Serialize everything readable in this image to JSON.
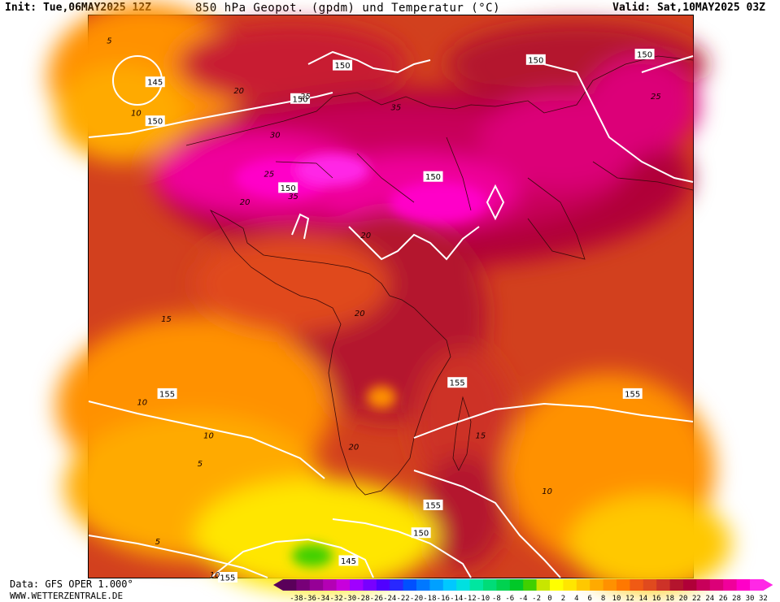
{
  "header": {
    "init": "Init: Tue,06MAY2025 12Z",
    "title": "850 hPa Geopot. (gpdm) und Temperatur (°C)",
    "valid": "Valid: Sat,10MAY2025 03Z"
  },
  "footer": {
    "source": "Data: GFS OPER 1.000°",
    "site": "WWW.WETTERZENTRALE.DE"
  },
  "legend": {
    "ticks": [
      "-38",
      "-36",
      "-34",
      "-32",
      "-30",
      "-28",
      "-26",
      "-24",
      "-22",
      "-20",
      "-18",
      "-16",
      "-14",
      "-12",
      "-10",
      "-8",
      "-6",
      "-4",
      "-2",
      "0",
      "2",
      "4",
      "6",
      "8",
      "10",
      "12",
      "14",
      "16",
      "18",
      "20",
      "22",
      "24",
      "26",
      "28",
      "30",
      "32"
    ],
    "colors": [
      "#5a005a",
      "#780078",
      "#960096",
      "#b400b4",
      "#c800dc",
      "#a000ff",
      "#7800ff",
      "#5000ff",
      "#2828ff",
      "#0050ff",
      "#0078ff",
      "#00a0ff",
      "#00c8ff",
      "#00e0e0",
      "#00e6a0",
      "#00dc78",
      "#00d250",
      "#00c828",
      "#40d000",
      "#c8e600",
      "#ffff00",
      "#ffe600",
      "#ffc800",
      "#ffaa00",
      "#ff9100",
      "#ff7800",
      "#f05a14",
      "#e04a1e",
      "#cd3228",
      "#b4142d",
      "#b00038",
      "#c8005a",
      "#dc0078",
      "#f0009b",
      "#ff00c8",
      "#ff28e6"
    ]
  },
  "isohypses": {
    "unit": "gpdm",
    "labels": [
      {
        "text": "145",
        "lon_lat": [
          -27,
          41
        ]
      },
      {
        "text": "150",
        "lon_lat": [
          -27,
          34
        ]
      },
      {
        "text": "150",
        "lon_lat": [
          -3,
          38
        ]
      },
      {
        "text": "150",
        "lon_lat": [
          4,
          44
        ]
      },
      {
        "text": "150",
        "lon_lat": [
          -5,
          22
        ]
      },
      {
        "text": "150",
        "lon_lat": [
          19,
          24
        ]
      },
      {
        "text": "150",
        "lon_lat": [
          36,
          45
        ]
      },
      {
        "text": "150",
        "lon_lat": [
          54,
          46
        ]
      },
      {
        "text": "155",
        "lon_lat": [
          -25,
          -15
        ]
      },
      {
        "text": "155",
        "lon_lat": [
          23,
          -13
        ]
      },
      {
        "text": "155",
        "lon_lat": [
          52,
          -15
        ]
      },
      {
        "text": "155",
        "lon_lat": [
          19,
          -35
        ]
      },
      {
        "text": "150",
        "lon_lat": [
          17,
          -40
        ]
      },
      {
        "text": "145",
        "lon_lat": [
          5,
          -45
        ]
      },
      {
        "text": "155",
        "lon_lat": [
          -15,
          -48
        ]
      }
    ]
  },
  "isotherms": {
    "unit": "°C",
    "labels": [
      {
        "text": "5",
        "lon_lat": [
          -35,
          48
        ]
      },
      {
        "text": "10",
        "lon_lat": [
          -31,
          35
        ]
      },
      {
        "text": "20",
        "lon_lat": [
          -14,
          39
        ]
      },
      {
        "text": "25",
        "lon_lat": [
          -3,
          38
        ]
      },
      {
        "text": "30",
        "lon_lat": [
          -8,
          31
        ]
      },
      {
        "text": "35",
        "lon_lat": [
          12,
          36
        ]
      },
      {
        "text": "25",
        "lon_lat": [
          55,
          38
        ]
      },
      {
        "text": "25",
        "lon_lat": [
          -9,
          24
        ]
      },
      {
        "text": "20",
        "lon_lat": [
          -13,
          19
        ]
      },
      {
        "text": "35",
        "lon_lat": [
          -5,
          20
        ]
      },
      {
        "text": "20",
        "lon_lat": [
          7,
          13
        ]
      },
      {
        "text": "20",
        "lon_lat": [
          6,
          -1
        ]
      },
      {
        "text": "15",
        "lon_lat": [
          -26,
          -2
        ]
      },
      {
        "text": "10",
        "lon_lat": [
          -30,
          -17
        ]
      },
      {
        "text": "10",
        "lon_lat": [
          -19,
          -23
        ]
      },
      {
        "text": "5",
        "lon_lat": [
          -20,
          -28
        ]
      },
      {
        "text": "20",
        "lon_lat": [
          5,
          -25
        ]
      },
      {
        "text": "15",
        "lon_lat": [
          26,
          -23
        ]
      },
      {
        "text": "10",
        "lon_lat": [
          37,
          -33
        ]
      },
      {
        "text": "5",
        "lon_lat": [
          -27,
          -42
        ]
      },
      {
        "text": "10",
        "lon_lat": [
          -18,
          -48
        ]
      }
    ]
  }
}
